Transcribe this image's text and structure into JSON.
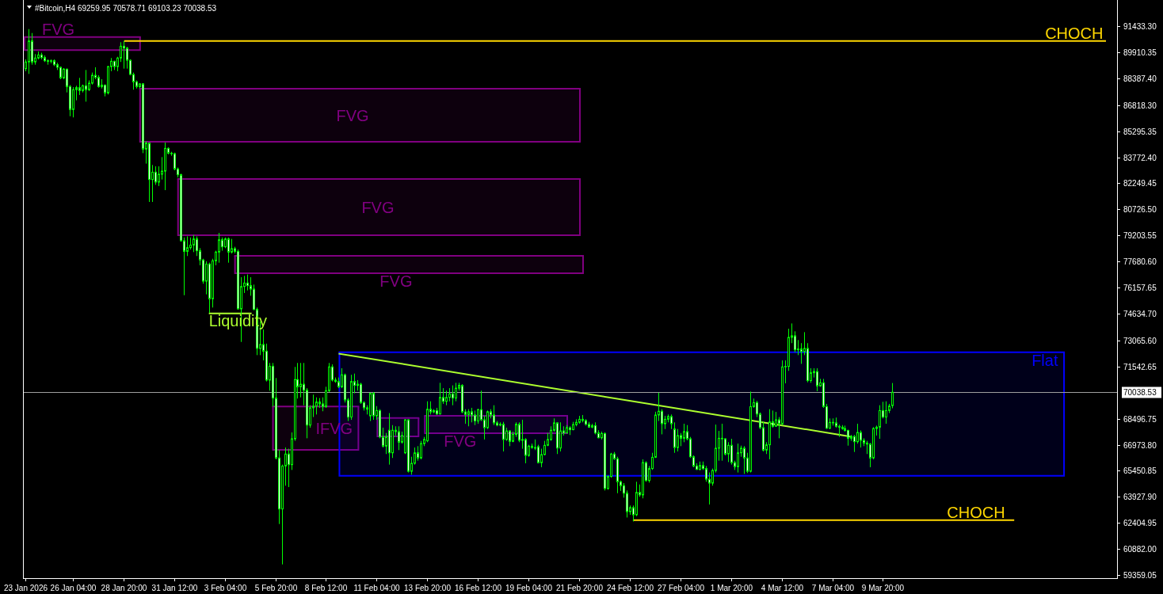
{
  "chart_data": {
    "type": "candlestick",
    "title": "#Bitcoin,H4 69259.95 70578.71 69103.23 70038.53",
    "color": "#00ff00",
    "xlim": [
      "2026-01-23T14:00",
      "2026-03-22T04:00"
    ],
    "ylim": [
      59176,
      92960
    ],
    "xticks": [
      {
        "value": "2026-01-23T16:00",
        "label": "23 Jan 2026"
      },
      {
        "value": "2026-01-26T04:00",
        "label": "26 Jan 04:00"
      },
      {
        "value": "2026-01-28T20:00",
        "label": "28 Jan 20:00"
      },
      {
        "value": "2026-01-31T12:00",
        "label": "31 Jan 12:00"
      },
      {
        "value": "2026-02-03T04:00",
        "label": "3 Feb 04:00"
      },
      {
        "value": "2026-02-05T20:00",
        "label": "5 Feb 20:00"
      },
      {
        "value": "2026-02-08T12:00",
        "label": "8 Feb 12:00"
      },
      {
        "value": "2026-02-11T04:00",
        "label": "11 Feb 04:00"
      },
      {
        "value": "2026-02-13T20:00",
        "label": "13 Feb 20:00"
      },
      {
        "value": "2026-02-16T12:00",
        "label": "16 Feb 12:00"
      },
      {
        "value": "2026-02-19T04:00",
        "label": "19 Feb 04:00"
      },
      {
        "value": "2026-02-21T20:00",
        "label": "21 Feb 20:00"
      },
      {
        "value": "2026-02-24T12:00",
        "label": "24 Feb 12:00"
      },
      {
        "value": "2026-02-27T04:00",
        "label": "27 Feb 04:00"
      },
      {
        "value": "2026-03-01T20:00",
        "label": "1 Mar 20:00"
      },
      {
        "value": "2026-03-04T12:00",
        "label": "4 Mar 12:00"
      },
      {
        "value": "2026-03-07T04:00",
        "label": "7 Mar 04:00"
      },
      {
        "value": "2026-03-09T20:00",
        "label": "9 Mar 20:00"
      }
    ],
    "yticks": [
      {
        "value": 91433.3,
        "label": "91433.30"
      },
      {
        "value": 89910.35,
        "label": "89910.35"
      },
      {
        "value": 88387.4,
        "label": "88387.40"
      },
      {
        "value": 86818.3,
        "label": "86818.30"
      },
      {
        "value": 85295.35,
        "label": "85295.35"
      },
      {
        "value": 83772.4,
        "label": "83772.40"
      },
      {
        "value": 82249.45,
        "label": "82249.45"
      },
      {
        "value": 80726.5,
        "label": "80726.50"
      },
      {
        "value": 79203.55,
        "label": "79203.55"
      },
      {
        "value": 77680.6,
        "label": "77680.60"
      },
      {
        "value": 76157.65,
        "label": "76157.65"
      },
      {
        "value": 74634.7,
        "label": "74634.70"
      },
      {
        "value": 73065.6,
        "label": "73065.60"
      },
      {
        "value": 71542.65,
        "label": "71542.65"
      },
      {
        "value": 68496.75,
        "label": "68496.75"
      },
      {
        "value": 66973.8,
        "label": "66973.80"
      },
      {
        "value": 65450.85,
        "label": "65450.85"
      },
      {
        "value": 63927.9,
        "label": "63927.90"
      },
      {
        "value": 62404.95,
        "label": "62404.95"
      },
      {
        "value": 60882,
        "label": "60882.00"
      },
      {
        "value": 59359.05,
        "label": "59359.05"
      }
    ],
    "ref_lines": [
      {
        "axis": "y",
        "value": 70038.53,
        "label": "70038.53",
        "color": "#a0a0a0"
      }
    ],
    "x": [
      "2026-01-23T16:00",
      "2026-01-23T20:00",
      "2026-01-24T00:00",
      "2026-01-24T04:00",
      "2026-01-24T08:00",
      "2026-01-24T12:00",
      "2026-01-24T16:00",
      "2026-01-24T20:00",
      "2026-01-25T00:00",
      "2026-01-25T04:00",
      "2026-01-25T08:00",
      "2026-01-25T12:00",
      "2026-01-25T16:00",
      "2026-01-25T20:00",
      "2026-01-26T00:00",
      "2026-01-26T04:00",
      "2026-01-26T08:00",
      "2026-01-26T12:00",
      "2026-01-26T16:00",
      "2026-01-26T20:00",
      "2026-01-27T00:00",
      "2026-01-27T04:00",
      "2026-01-27T08:00",
      "2026-01-27T12:00",
      "2026-01-27T16:00",
      "2026-01-27T20:00",
      "2026-01-28T00:00",
      "2026-01-28T04:00",
      "2026-01-28T08:00",
      "2026-01-28T12:00",
      "2026-01-28T16:00",
      "2026-01-28T20:00",
      "2026-01-29T00:00",
      "2026-01-29T04:00",
      "2026-01-29T08:00",
      "2026-01-29T12:00",
      "2026-01-29T16:00",
      "2026-01-29T20:00",
      "2026-01-30T00:00",
      "2026-01-30T04:00",
      "2026-01-30T08:00",
      "2026-01-30T12:00",
      "2026-01-30T16:00",
      "2026-01-30T20:00",
      "2026-01-31T00:00",
      "2026-01-31T04:00",
      "2026-01-31T08:00",
      "2026-01-31T12:00",
      "2026-01-31T16:00",
      "2026-01-31T20:00",
      "2026-02-01T00:00",
      "2026-02-01T04:00",
      "2026-02-01T08:00",
      "2026-02-01T12:00",
      "2026-02-01T16:00",
      "2026-02-01T20:00",
      "2026-02-02T00:00",
      "2026-02-02T04:00",
      "2026-02-02T08:00",
      "2026-02-02T12:00",
      "2026-02-02T16:00",
      "2026-02-02T20:00",
      "2026-02-03T00:00",
      "2026-02-03T04:00",
      "2026-02-03T08:00",
      "2026-02-03T12:00",
      "2026-02-03T16:00",
      "2026-02-03T20:00",
      "2026-02-04T00:00",
      "2026-02-04T04:00",
      "2026-02-04T08:00",
      "2026-02-04T12:00",
      "2026-02-04T16:00",
      "2026-02-04T20:00",
      "2026-02-05T00:00",
      "2026-02-05T04:00",
      "2026-02-05T08:00",
      "2026-02-05T12:00",
      "2026-02-05T16:00",
      "2026-02-05T20:00",
      "2026-02-06T00:00",
      "2026-02-06T04:00",
      "2026-02-06T08:00",
      "2026-02-06T12:00",
      "2026-02-06T16:00",
      "2026-02-06T20:00",
      "2026-02-07T00:00",
      "2026-02-07T04:00",
      "2026-02-07T08:00",
      "2026-02-07T12:00",
      "2026-02-07T16:00",
      "2026-02-07T20:00",
      "2026-02-08T00:00",
      "2026-02-08T04:00",
      "2026-02-08T08:00",
      "2026-02-08T12:00",
      "2026-02-08T16:00",
      "2026-02-08T20:00",
      "2026-02-09T00:00",
      "2026-02-09T04:00",
      "2026-02-09T08:00",
      "2026-02-09T12:00",
      "2026-02-09T16:00",
      "2026-02-09T20:00",
      "2026-02-10T00:00",
      "2026-02-10T04:00",
      "2026-02-10T08:00",
      "2026-02-10T12:00",
      "2026-02-10T16:00",
      "2026-02-10T20:00",
      "2026-02-11T00:00",
      "2026-02-11T04:00",
      "2026-02-11T08:00",
      "2026-02-11T12:00",
      "2026-02-11T16:00",
      "2026-02-11T20:00",
      "2026-02-12T00:00",
      "2026-02-12T04:00",
      "2026-02-12T08:00",
      "2026-02-12T12:00",
      "2026-02-12T16:00",
      "2026-02-12T20:00",
      "2026-02-13T00:00",
      "2026-02-13T04:00",
      "2026-02-13T08:00",
      "2026-02-13T12:00",
      "2026-02-13T16:00",
      "2026-02-13T20:00",
      "2026-02-14T00:00",
      "2026-02-14T04:00",
      "2026-02-14T08:00",
      "2026-02-14T12:00",
      "2026-02-14T16:00",
      "2026-02-14T20:00",
      "2026-02-15T00:00",
      "2026-02-15T04:00",
      "2026-02-15T08:00",
      "2026-02-15T12:00",
      "2026-02-15T16:00",
      "2026-02-15T20:00",
      "2026-02-16T00:00",
      "2026-02-16T04:00",
      "2026-02-16T08:00",
      "2026-02-16T12:00",
      "2026-02-16T16:00",
      "2026-02-16T20:00",
      "2026-02-17T00:00",
      "2026-02-17T04:00",
      "2026-02-17T08:00",
      "2026-02-17T12:00",
      "2026-02-17T16:00",
      "2026-02-17T20:00",
      "2026-02-18T00:00",
      "2026-02-18T04:00",
      "2026-02-18T08:00",
      "2026-02-18T12:00",
      "2026-02-18T16:00",
      "2026-02-18T20:00",
      "2026-02-19T00:00",
      "2026-02-19T04:00",
      "2026-02-19T08:00",
      "2026-02-19T12:00",
      "2026-02-19T16:00",
      "2026-02-19T20:00",
      "2026-02-20T00:00",
      "2026-02-20T04:00",
      "2026-02-20T08:00",
      "2026-02-20T12:00",
      "2026-02-20T16:00",
      "2026-02-20T20:00",
      "2026-02-21T00:00",
      "2026-02-21T04:00",
      "2026-02-21T08:00",
      "2026-02-21T12:00",
      "2026-02-21T16:00",
      "2026-02-21T20:00",
      "2026-02-22T00:00",
      "2026-02-22T04:00",
      "2026-02-22T08:00",
      "2026-02-22T12:00",
      "2026-02-22T16:00",
      "2026-02-22T20:00",
      "2026-02-23T00:00",
      "2026-02-23T04:00",
      "2026-02-23T08:00",
      "2026-02-23T12:00",
      "2026-02-23T16:00",
      "2026-02-23T20:00",
      "2026-02-24T00:00",
      "2026-02-24T04:00",
      "2026-02-24T08:00",
      "2026-02-24T12:00",
      "2026-02-24T16:00",
      "2026-02-24T20:00",
      "2026-02-25T00:00",
      "2026-02-25T04:00",
      "2026-02-25T08:00",
      "2026-02-25T12:00",
      "2026-02-25T16:00",
      "2026-02-25T20:00",
      "2026-02-26T00:00",
      "2026-02-26T04:00",
      "2026-02-26T08:00",
      "2026-02-26T12:00",
      "2026-02-26T16:00",
      "2026-02-26T20:00",
      "2026-02-27T00:00",
      "2026-02-27T04:00",
      "2026-02-27T08:00",
      "2026-02-27T12:00",
      "2026-02-27T16:00",
      "2026-02-27T20:00",
      "2026-02-28T00:00",
      "2026-02-28T04:00",
      "2026-02-28T08:00",
      "2026-02-28T12:00",
      "2026-02-28T16:00",
      "2026-02-28T20:00",
      "2026-03-01T00:00",
      "2026-03-01T04:00",
      "2026-03-01T08:00",
      "2026-03-01T12:00",
      "2026-03-01T16:00",
      "2026-03-01T20:00",
      "2026-03-02T00:00",
      "2026-03-02T04:00",
      "2026-03-02T08:00",
      "2026-03-02T12:00",
      "2026-03-02T16:00",
      "2026-03-02T20:00",
      "2026-03-03T00:00",
      "2026-03-03T04:00",
      "2026-03-03T08:00",
      "2026-03-03T12:00",
      "2026-03-03T16:00",
      "2026-03-03T20:00",
      "2026-03-04T00:00",
      "2026-03-04T04:00",
      "2026-03-04T08:00",
      "2026-03-04T12:00",
      "2026-03-04T16:00",
      "2026-03-04T20:00",
      "2026-03-05T00:00",
      "2026-03-05T04:00",
      "2026-03-05T08:00",
      "2026-03-05T12:00",
      "2026-03-05T16:00",
      "2026-03-05T20:00",
      "2026-03-06T00:00",
      "2026-03-06T04:00",
      "2026-03-06T08:00",
      "2026-03-06T12:00",
      "2026-03-06T16:00",
      "2026-03-06T20:00",
      "2026-03-07T00:00",
      "2026-03-07T04:00",
      "2026-03-07T08:00",
      "2026-03-07T12:00",
      "2026-03-07T16:00",
      "2026-03-07T20:00",
      "2026-03-08T00:00",
      "2026-03-08T04:00",
      "2026-03-08T08:00",
      "2026-03-08T12:00",
      "2026-03-08T16:00",
      "2026-03-08T20:00",
      "2026-03-09T00:00",
      "2026-03-09T04:00",
      "2026-03-09T08:00",
      "2026-03-09T12:00",
      "2026-03-09T16:00",
      "2026-03-09T20:00",
      "2026-03-10T00:00",
      "2026-03-10T04:00",
      "2026-03-10T08:00"
    ],
    "ohlc": [
      [
        88950,
        89490,
        88800,
        89340
      ],
      [
        89340,
        91260,
        88640,
        90570
      ],
      [
        90570,
        91030,
        89180,
        89340
      ],
      [
        89340,
        89800,
        89180,
        89570
      ],
      [
        89570,
        89950,
        89490,
        89750
      ],
      [
        89750,
        89880,
        89490,
        89600
      ],
      [
        89600,
        89720,
        89340,
        89410
      ],
      [
        89410,
        89490,
        89180,
        89380
      ],
      [
        89380,
        89490,
        89260,
        89410
      ],
      [
        89410,
        89490,
        89100,
        89180
      ],
      [
        89180,
        89290,
        88870,
        89030
      ],
      [
        89030,
        89060,
        88330,
        88410
      ],
      [
        88410,
        88980,
        88330,
        88920
      ],
      [
        88920,
        88950,
        87560,
        87900
      ],
      [
        87900,
        87990,
        86170,
        86560
      ],
      [
        86560,
        87870,
        86100,
        87720
      ],
      [
        87720,
        87950,
        87100,
        87840
      ],
      [
        87840,
        88410,
        87410,
        87670
      ],
      [
        87670,
        88020,
        87560,
        87950
      ],
      [
        87950,
        88870,
        87020,
        87720
      ],
      [
        87720,
        88260,
        87640,
        88100
      ],
      [
        88100,
        88720,
        88020,
        88560
      ],
      [
        88560,
        89030,
        88330,
        88440
      ],
      [
        88440,
        88560,
        87840,
        87900
      ],
      [
        87900,
        88330,
        87790,
        87990
      ],
      [
        87990,
        88020,
        87330,
        87530
      ],
      [
        87530,
        89100,
        87440,
        89070
      ],
      [
        89070,
        89570,
        88800,
        89380
      ],
      [
        89380,
        89410,
        88870,
        89070
      ],
      [
        89070,
        89640,
        88800,
        89570
      ],
      [
        89570,
        90490,
        89340,
        90260
      ],
      [
        90260,
        90570,
        88950,
        90150
      ],
      [
        90150,
        90220,
        88950,
        89440
      ],
      [
        89440,
        89490,
        88560,
        88610
      ],
      [
        88610,
        88720,
        87720,
        88180
      ],
      [
        88180,
        88260,
        87790,
        87900
      ],
      [
        87900,
        88100,
        87790,
        88060
      ],
      [
        88060,
        88100,
        84010,
        84250
      ],
      [
        84250,
        84710,
        83400,
        84600
      ],
      [
        84600,
        84630,
        81160,
        82470
      ],
      [
        82470,
        83320,
        81160,
        82900
      ],
      [
        82900,
        83240,
        82160,
        82320
      ],
      [
        82320,
        83240,
        82090,
        82780
      ],
      [
        82780,
        83780,
        82470,
        82960
      ],
      [
        82960,
        84630,
        81850,
        84290
      ],
      [
        84290,
        84350,
        83940,
        84010
      ],
      [
        84010,
        84090,
        83860,
        83980
      ],
      [
        83980,
        84040,
        83010,
        83090
      ],
      [
        83090,
        83170,
        82590,
        82750
      ],
      [
        82750,
        82810,
        78850,
        78890
      ],
      [
        78890,
        79080,
        75710,
        78270
      ],
      [
        78270,
        79150,
        78000,
        78490
      ],
      [
        78490,
        79080,
        78380,
        78640
      ],
      [
        78640,
        79230,
        78230,
        79000
      ],
      [
        79000,
        79150,
        78000,
        78310
      ],
      [
        78310,
        78460,
        77460,
        77770
      ],
      [
        77770,
        77840,
        76380,
        76530
      ],
      [
        76530,
        77690,
        75760,
        77530
      ],
      [
        77530,
        77610,
        74680,
        75500
      ],
      [
        75500,
        77840,
        74990,
        77720
      ],
      [
        77720,
        78310,
        77460,
        78230
      ],
      [
        78230,
        79350,
        77610,
        78950
      ],
      [
        78950,
        79080,
        78310,
        78540
      ],
      [
        78540,
        79080,
        78460,
        79000
      ],
      [
        79000,
        79080,
        77610,
        78230
      ],
      [
        78230,
        79000,
        78150,
        78430
      ],
      [
        78430,
        78540,
        78150,
        78270
      ],
      [
        78270,
        78380,
        74880,
        74910
      ],
      [
        74910,
        76760,
        72980,
        76220
      ],
      [
        76220,
        76840,
        75840,
        76420
      ],
      [
        76420,
        76920,
        75990,
        76270
      ],
      [
        76270,
        76760,
        75680,
        76070
      ],
      [
        76070,
        76330,
        74830,
        74880
      ],
      [
        74880,
        74990,
        72210,
        72600
      ],
      [
        72600,
        74170,
        72210,
        72830
      ],
      [
        72830,
        73710,
        71900,
        72440
      ],
      [
        72440,
        72880,
        70670,
        70750
      ],
      [
        70750,
        71750,
        70130,
        71560
      ],
      [
        71560,
        71750,
        69200,
        69700
      ],
      [
        69700,
        70870,
        66120,
        66200
      ],
      [
        66200,
        66660,
        62340,
        63220
      ],
      [
        63220,
        65810,
        59980,
        65730
      ],
      [
        65730,
        66810,
        64580,
        66430
      ],
      [
        66430,
        66740,
        64500,
        65810
      ],
      [
        65810,
        67690,
        65500,
        67320
      ],
      [
        67320,
        71520,
        67200,
        70780
      ],
      [
        70780,
        71750,
        69670,
        70360
      ],
      [
        70360,
        71750,
        69740,
        70510
      ],
      [
        70510,
        71750,
        69280,
        70160
      ],
      [
        70160,
        70280,
        67350,
        68120
      ],
      [
        68120,
        69280,
        67970,
        69130
      ],
      [
        69130,
        69900,
        68590,
        69230
      ],
      [
        69230,
        69740,
        68740,
        69470
      ],
      [
        69470,
        69700,
        69130,
        69360
      ],
      [
        69360,
        69740,
        68930,
        69200
      ],
      [
        69200,
        70360,
        69130,
        70130
      ],
      [
        70130,
        71750,
        70050,
        71520
      ],
      [
        71520,
        71670,
        70670,
        70750
      ],
      [
        70750,
        70900,
        70590,
        70670
      ],
      [
        70670,
        70900,
        70280,
        70360
      ],
      [
        70360,
        71440,
        70280,
        71060
      ],
      [
        71060,
        71130,
        69440,
        69590
      ],
      [
        69590,
        69700,
        68360,
        68590
      ],
      [
        68590,
        71060,
        68430,
        70670
      ],
      [
        70670,
        71130,
        69980,
        70440
      ],
      [
        70440,
        70750,
        70130,
        70510
      ],
      [
        70510,
        70590,
        69360,
        69440
      ],
      [
        69440,
        69510,
        68970,
        69130
      ],
      [
        69130,
        69280,
        68740,
        69050
      ],
      [
        68660,
        70010,
        68360,
        69980
      ],
      [
        69980,
        70050,
        68430,
        68660
      ],
      [
        68660,
        69230,
        68430,
        68970
      ],
      [
        68970,
        69050,
        67350,
        67430
      ],
      [
        67430,
        67970,
        66810,
        66890
      ],
      [
        66890,
        67660,
        66430,
        67430
      ],
      [
        67820,
        68820,
        65810,
        66500
      ],
      [
        66500,
        68120,
        66200,
        67820
      ],
      [
        67820,
        68050,
        67510,
        67740
      ],
      [
        67740,
        68050,
        66660,
        67120
      ],
      [
        67120,
        67740,
        67040,
        67510
      ],
      [
        66500,
        68460,
        66430,
        68430
      ],
      [
        68430,
        68460,
        65350,
        65420
      ],
      [
        65420,
        66270,
        65220,
        65890
      ],
      [
        65890,
        66810,
        65810,
        66500
      ],
      [
        66500,
        66890,
        66040,
        66200
      ],
      [
        66200,
        67200,
        66120,
        67040
      ],
      [
        67040,
        67430,
        66890,
        67280
      ],
      [
        67200,
        69510,
        67120,
        69050
      ],
      [
        69050,
        69510,
        68740,
        68890
      ],
      [
        68890,
        69050,
        68820,
        68970
      ],
      [
        68970,
        69130,
        68710,
        68770
      ],
      [
        68770,
        70590,
        68740,
        69740
      ],
      [
        69740,
        70280,
        69360,
        69510
      ],
      [
        69510,
        70130,
        69280,
        69740
      ],
      [
        69740,
        70280,
        69510,
        69940
      ],
      [
        69940,
        70440,
        69280,
        69700
      ],
      [
        69700,
        70590,
        69510,
        70280
      ],
      [
        70280,
        70590,
        70130,
        70440
      ],
      [
        70440,
        70510,
        68820,
        68890
      ],
      [
        68890,
        69050,
        68200,
        68740
      ],
      [
        68740,
        69050,
        68050,
        68900
      ],
      [
        68900,
        69130,
        68280,
        68710
      ],
      [
        68710,
        68970,
        68120,
        68360
      ],
      [
        68360,
        69080,
        68200,
        69020
      ],
      [
        69020,
        70130,
        68360,
        68430
      ],
      [
        68430,
        68660,
        67280,
        67970
      ],
      [
        67970,
        68970,
        67890,
        68900
      ],
      [
        68900,
        69050,
        68510,
        68710
      ],
      [
        68710,
        69280,
        68120,
        68250
      ],
      [
        68250,
        68360,
        68050,
        68120
      ],
      [
        68120,
        68280,
        68050,
        68170
      ],
      [
        68170,
        68310,
        66580,
        67280
      ],
      [
        67280,
        67970,
        67200,
        67780
      ],
      [
        67780,
        67820,
        66890,
        67170
      ],
      [
        67170,
        67740,
        67120,
        67580
      ],
      [
        67580,
        68280,
        67430,
        68170
      ],
      [
        68170,
        68280,
        67120,
        67230
      ],
      [
        67230,
        68430,
        66740,
        67280
      ],
      [
        67280,
        67350,
        65890,
        66350
      ],
      [
        66350,
        66970,
        66270,
        66890
      ],
      [
        66890,
        67040,
        66740,
        66810
      ],
      [
        66810,
        67280,
        66660,
        66770
      ],
      [
        66860,
        66970,
        65890,
        65920
      ],
      [
        65920,
        66740,
        65660,
        66400
      ],
      [
        66400,
        67200,
        66350,
        66940
      ],
      [
        66940,
        67660,
        66890,
        67280
      ],
      [
        67280,
        68050,
        67200,
        67820
      ],
      [
        67820,
        68510,
        67740,
        68250
      ],
      [
        68250,
        68280,
        66430,
        66780
      ],
      [
        66780,
        68280,
        66580,
        67780
      ],
      [
        67780,
        68050,
        67510,
        67660
      ],
      [
        67660,
        68120,
        67660,
        67970
      ],
      [
        67970,
        68050,
        67540,
        67850
      ],
      [
        67850,
        68310,
        67820,
        68150
      ],
      [
        68150,
        68460,
        68050,
        68280
      ],
      [
        68280,
        68660,
        68200,
        68460
      ],
      [
        68460,
        68710,
        68280,
        68390
      ],
      [
        68390,
        68460,
        68090,
        68170
      ],
      [
        68170,
        68310,
        67970,
        68000
      ],
      [
        68000,
        68200,
        67940,
        68090
      ],
      [
        68090,
        68280,
        67580,
        67660
      ],
      [
        67660,
        67820,
        67350,
        67380
      ],
      [
        67380,
        67740,
        67280,
        67630
      ],
      [
        67630,
        67690,
        64300,
        64420
      ],
      [
        64420,
        65190,
        64340,
        65120
      ],
      [
        65120,
        66500,
        65040,
        66430
      ],
      [
        66430,
        66550,
        66090,
        66150
      ],
      [
        66150,
        66270,
        64140,
        64810
      ],
      [
        64810,
        64880,
        64270,
        64580
      ],
      [
        64580,
        64730,
        63880,
        64140
      ],
      [
        64140,
        64300,
        62720,
        63060
      ],
      [
        63060,
        63420,
        62880,
        63300
      ],
      [
        63300,
        63420,
        62490,
        62880
      ],
      [
        62880,
        64810,
        62800,
        64190
      ],
      [
        64190,
        64650,
        63930,
        64040
      ],
      [
        64040,
        66120,
        63840,
        65930
      ],
      [
        65930,
        66000,
        64810,
        64880
      ],
      [
        64880,
        65730,
        64760,
        65580
      ],
      [
        65580,
        66500,
        65500,
        66240
      ],
      [
        66240,
        68900,
        66200,
        68710
      ],
      [
        68710,
        70010,
        68360,
        68930
      ],
      [
        68930,
        69050,
        67580,
        68200
      ],
      [
        68200,
        68660,
        67890,
        68460
      ],
      [
        68460,
        68740,
        68280,
        68620
      ],
      [
        68620,
        68740,
        67890,
        68200
      ],
      [
        67890,
        68280,
        66500,
        66810
      ],
      [
        66810,
        67890,
        66580,
        67510
      ],
      [
        67510,
        67660,
        66890,
        67350
      ],
      [
        67350,
        68200,
        67120,
        67740
      ],
      [
        67740,
        68120,
        67230,
        67320
      ],
      [
        67320,
        67430,
        66200,
        66270
      ],
      [
        66270,
        66350,
        65660,
        65730
      ],
      [
        65730,
        65890,
        65500,
        65530
      ],
      [
        65530,
        65990,
        65470,
        65760
      ],
      [
        65760,
        65990,
        65500,
        65580
      ],
      [
        65580,
        65730,
        64810,
        64960
      ],
      [
        64960,
        65350,
        63480,
        64730
      ],
      [
        64730,
        65580,
        64580,
        65470
      ],
      [
        65470,
        68150,
        65350,
        66770
      ],
      [
        66770,
        67780,
        66040,
        67350
      ],
      [
        67350,
        68200,
        66040,
        67320
      ],
      [
        67320,
        67350,
        66350,
        66430
      ],
      [
        66430,
        67120,
        65960,
        66940
      ],
      [
        66940,
        67320,
        65810,
        65930
      ],
      [
        65930,
        66040,
        65500,
        65690
      ],
      [
        65690,
        67040,
        65350,
        66500
      ],
      [
        66500,
        66920,
        66270,
        66770
      ],
      [
        66770,
        66890,
        65270,
        66200
      ],
      [
        66200,
        66500,
        65320,
        65420
      ],
      [
        65420,
        70080,
        65350,
        69200
      ],
      [
        69200,
        69670,
        69130,
        69430
      ],
      [
        69430,
        69540,
        68590,
        68770
      ],
      [
        68770,
        68860,
        67890,
        67970
      ],
      [
        67970,
        68310,
        66580,
        66660
      ],
      [
        66660,
        67120,
        66430,
        66970
      ],
      [
        66970,
        69050,
        66120,
        68310
      ],
      [
        68310,
        68970,
        67970,
        68050
      ],
      [
        68050,
        68890,
        68050,
        68430
      ],
      [
        68430,
        68590,
        67350,
        68200
      ],
      [
        68200,
        71900,
        68120,
        71520
      ],
      [
        71520,
        71900,
        70560,
        71550
      ],
      [
        71550,
        73750,
        71290,
        73250
      ],
      [
        73250,
        74060,
        72910,
        73340
      ],
      [
        73340,
        73600,
        72370,
        72520
      ],
      [
        72520,
        73090,
        72210,
        72570
      ],
      [
        72570,
        72910,
        71700,
        72410
      ],
      [
        72410,
        73550,
        72210,
        72600
      ],
      [
        72600,
        72910,
        70620,
        70720
      ],
      [
        70720,
        71440,
        70590,
        71180
      ],
      [
        71180,
        71440,
        70900,
        71250
      ],
      [
        71250,
        71440,
        70100,
        70410
      ],
      [
        70410,
        70820,
        70360,
        70590
      ],
      [
        70590,
        70820,
        69130,
        69200
      ],
      [
        69200,
        69360,
        67890,
        67940
      ],
      [
        67940,
        68510,
        67890,
        68280
      ],
      [
        68280,
        68510,
        68090,
        68250
      ],
      [
        68250,
        68560,
        67970,
        68050
      ],
      [
        68050,
        68150,
        67430,
        68000
      ],
      [
        68000,
        68120,
        67850,
        67920
      ],
      [
        67920,
        68090,
        67740,
        67810
      ],
      [
        67810,
        67850,
        66920,
        67350
      ],
      [
        67350,
        67540,
        67200,
        67460
      ],
      [
        67460,
        67540,
        66550,
        67150
      ],
      [
        67150,
        68200,
        67040,
        67690
      ],
      [
        67690,
        67810,
        66810,
        67230
      ],
      [
        67230,
        67350,
        66890,
        67070
      ],
      [
        67070,
        67200,
        66430,
        67010
      ],
      [
        67010,
        67070,
        65660,
        66200
      ],
      [
        66200,
        68000,
        66120,
        67920
      ],
      [
        67920,
        68090,
        67510,
        68000
      ],
      [
        68000,
        69280,
        67320,
        68970
      ],
      [
        68970,
        69480,
        68510,
        68590
      ],
      [
        68590,
        69510,
        68200,
        68970
      ],
      [
        68970,
        69360,
        68820,
        69230
      ],
      [
        69259.95,
        70578.71,
        69103.23,
        70038.53
      ]
    ],
    "series": [
      {
        "type": "line",
        "color": "#800080",
        "x": [
          "2026-01-23T15:00",
          "2026-01-29T17:00"
        ],
        "values": [
          90800,
          90800
        ],
        "lower": [
          90030,
          90030
        ],
        "upper": [
          90800,
          90800
        ]
      },
      {
        "type": "line",
        "color": "#800080",
        "x": [
          "2026-01-29T17:00",
          "2026-02-21T21:00"
        ],
        "values": [
          87780,
          87780
        ],
        "lower": [
          84680,
          84680
        ],
        "upper": [
          87780,
          87780
        ]
      },
      {
        "type": "line",
        "color": "#800080",
        "x": [
          "2026-01-31T17:00",
          "2026-02-21T21:00"
        ],
        "values": [
          82500,
          82500
        ],
        "lower": [
          79220,
          79220
        ],
        "upper": [
          82500,
          82500
        ]
      },
      {
        "type": "line",
        "color": "#800080",
        "x": [
          "2026-02-03T17:00",
          "2026-02-22T01:00"
        ],
        "values": [
          78010,
          78010
        ],
        "lower": [
          76990,
          76990
        ],
        "upper": [
          78010,
          78010
        ]
      },
      {
        "type": "line",
        "color": "#800080",
        "x": [
          "2026-02-05T17:00",
          "2026-02-10T05:00"
        ],
        "values": [
          69210,
          69210
        ],
        "lower": [
          66670,
          66670
        ],
        "upper": [
          69210,
          69210
        ]
      },
      {
        "type": "line",
        "color": "#800080",
        "x": [
          "2026-02-11T05:00",
          "2026-02-13T09:00"
        ],
        "values": [
          68540,
          68540
        ],
        "lower": [
          67460,
          67460
        ],
        "upper": [
          68540,
          68540
        ]
      },
      {
        "type": "line",
        "color": "#800080",
        "x": [
          "2026-02-13T17:00",
          "2026-02-21T05:00"
        ],
        "values": [
          68660,
          68660
        ],
        "lower": [
          67650,
          67650
        ],
        "upper": [
          68660,
          68660
        ]
      },
      {
        "type": "line",
        "color": "#0000ff",
        "x": [
          "2026-02-09T05:00",
          "2026-03-19T09:00"
        ],
        "values": [
          72380,
          72380
        ],
        "lower": [
          65160,
          65160
        ],
        "upper": [
          72380,
          72380
        ]
      },
      {
        "type": "line",
        "color": "#adff2f",
        "x": [
          "2026-02-09T05:00",
          "2026-03-08T02:00"
        ],
        "values": [
          72290,
          67460
        ]
      },
      {
        "type": "line",
        "color": "#adff2f",
        "x": [
          "2026-02-02T09:00",
          "2026-02-04T13:00"
        ],
        "values": [
          74650,
          74650
        ]
      },
      {
        "type": "line",
        "color": "#ffd700",
        "x": [
          "2026-01-28T22:00",
          "2026-03-21T13:00"
        ],
        "values": [
          90570,
          90570
        ]
      },
      {
        "type": "line",
        "color": "#ffd700",
        "x": [
          "2026-02-24T17:00",
          "2026-03-16T17:00"
        ],
        "values": [
          62570,
          62570
        ]
      }
    ],
    "annotations": [
      {
        "text": "CHOCH",
        "x": "2026-03-18T09:00",
        "y": 90570
      },
      {
        "text": "FVG",
        "x": "2026-01-24T13:00",
        "y": 90780
      },
      {
        "text": "FVG",
        "x": "2026-02-09T01:00",
        "y": 87780
      },
      {
        "text": "FVG",
        "x": "2026-02-10T09:00",
        "y": 82500
      },
      {
        "text": "FVG",
        "x": "2026-02-11T08:00",
        "y": 76990
      },
      {
        "text": "Liquidity",
        "x": "2026-02-02T08:00",
        "y": 74680
      },
      {
        "text": "Flat",
        "x": "2026-03-17T16:00",
        "y": 72380
      },
      {
        "text": "IFVG",
        "x": "2026-02-07T23:00",
        "y": 69210
      },
      {
        "text": "FVG",
        "x": "2026-02-14T17:00",
        "y": 67650
      },
      {
        "text": "CHOCH",
        "x": "2026-03-13T05:00",
        "y": 62570
      }
    ]
  }
}
